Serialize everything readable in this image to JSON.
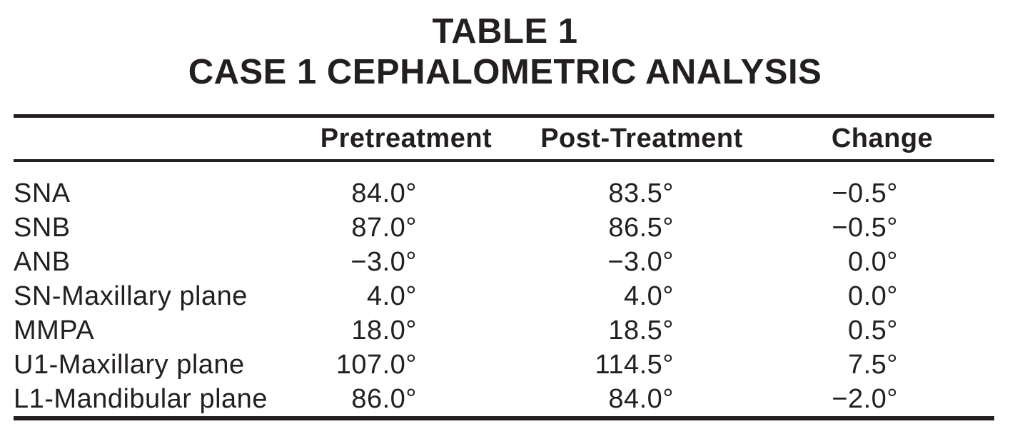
{
  "page_title": {
    "line1": "TABLE 1",
    "line2": "CASE 1 CEPHALOMETRIC ANALYSIS"
  },
  "table": {
    "column_headers": {
      "parameter": "",
      "pretreatment": "Pretreatment",
      "post_treatment": "Post-Treatment",
      "change": "Change"
    },
    "rows": [
      {
        "parameter": "SNA",
        "pretreatment": "84.0°",
        "post_treatment": "83.5°",
        "change": "−0.5°"
      },
      {
        "parameter": "SNB",
        "pretreatment": "87.0°",
        "post_treatment": "86.5°",
        "change": "−0.5°"
      },
      {
        "parameter": "ANB",
        "pretreatment": "−3.0°",
        "post_treatment": "−3.0°",
        "change": "0.0°"
      },
      {
        "parameter": "SN-Maxillary plane",
        "pretreatment": "4.0°",
        "post_treatment": "4.0°",
        "change": "0.0°"
      },
      {
        "parameter": "MMPA",
        "pretreatment": "18.0°",
        "post_treatment": "18.5°",
        "change": "0.5°"
      },
      {
        "parameter": "U1-Maxillary plane",
        "pretreatment": "107.0°",
        "post_treatment": "114.5°",
        "change": "7.5°"
      },
      {
        "parameter": "L1-Mandibular plane",
        "pretreatment": "86.0°",
        "post_treatment": "84.0°",
        "change": "−2.0°"
      }
    ]
  },
  "colors": {
    "text": "#231f20",
    "rule": "#231f20",
    "background": "#ffffff"
  }
}
